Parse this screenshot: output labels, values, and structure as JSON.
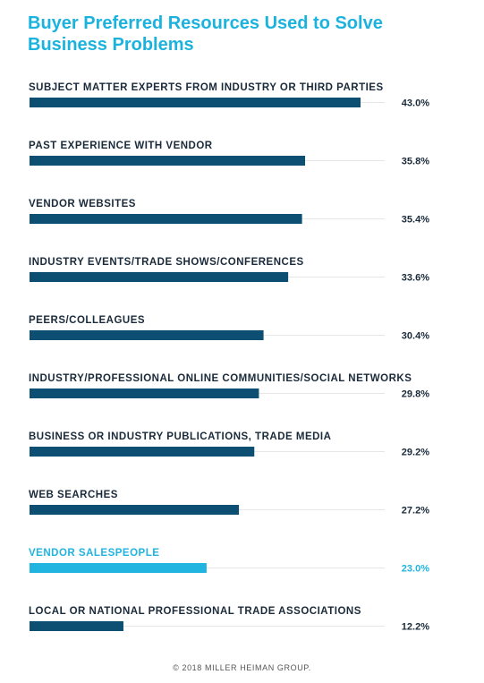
{
  "colors": {
    "title": "#1bb3de",
    "bar": "#0d4f72",
    "highlight": "#21b4e0",
    "track": "#e6e6e6",
    "label": "#1a2a3a"
  },
  "footer": "© 2018 MILLER HEIMAN GROUP.",
  "chart_data": {
    "type": "bar",
    "orientation": "horizontal",
    "title": "Buyer Preferred Resources Used to Solve Business Problems",
    "categories": [
      "SUBJECT MATTER EXPERTS FROM INDUSTRY OR THIRD PARTIES",
      "PAST EXPERIENCE WITH VENDOR",
      "VENDOR WEBSITES",
      "INDUSTRY EVENTS/TRADE SHOWS/CONFERENCES",
      "PEERS/COLLEAGUES",
      "INDUSTRY/PROFESSIONAL ONLINE COMMUNITIES/SOCIAL NETWORKS",
      "BUSINESS OR INDUSTRY PUBLICATIONS, TRADE MEDIA",
      "WEB SEARCHES",
      "VENDOR SALESPEOPLE",
      "LOCAL OR NATIONAL PROFESSIONAL TRADE ASSOCIATIONS"
    ],
    "values": [
      43.0,
      35.8,
      35.4,
      33.6,
      30.4,
      29.8,
      29.2,
      27.2,
      23.0,
      12.2
    ],
    "value_labels": [
      "43.0%",
      "35.8%",
      "35.4%",
      "33.6%",
      "30.4%",
      "29.8%",
      "29.2%",
      "27.2%",
      "23.0%",
      "12.2%"
    ],
    "highlighted_index": 8,
    "xlim": [
      0,
      43.0
    ],
    "grid": false,
    "legend": "none"
  }
}
